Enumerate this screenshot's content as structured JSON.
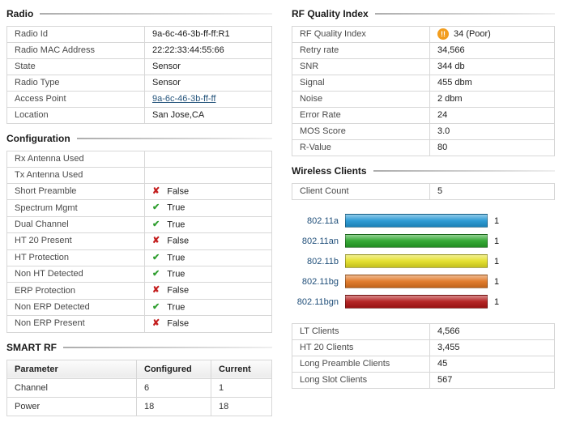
{
  "colors": {
    "link": "#27567d",
    "check": "#2f9e2f",
    "cross": "#c42020",
    "warning": "#f29d1e"
  },
  "radio": {
    "title": "Radio",
    "rows": [
      {
        "label": "Radio Id",
        "value": "9a-6c-46-3b-ff-ff:R1"
      },
      {
        "label": "Radio MAC Address",
        "value": "22:22:33:44:55:66"
      },
      {
        "label": "State",
        "value": "Sensor"
      },
      {
        "label": "Radio Type",
        "value": "Sensor"
      },
      {
        "label": "Access Point",
        "value": "9a-6c-46-3b-ff-ff"
      },
      {
        "label": "Location",
        "value": "San Jose,CA"
      }
    ]
  },
  "configuration": {
    "title": "Configuration",
    "rows": [
      {
        "label": "Rx Antenna Used",
        "value": ""
      },
      {
        "label": "Tx Antenna Used",
        "value": ""
      },
      {
        "label": "Short Preamble",
        "value": "False",
        "icon": "cross"
      },
      {
        "label": "Spectrum Mgmt",
        "value": "True",
        "icon": "check"
      },
      {
        "label": "Dual Channel",
        "value": "True",
        "icon": "check"
      },
      {
        "label": "HT 20 Present",
        "value": "False",
        "icon": "cross"
      },
      {
        "label": "HT Protection",
        "value": "True",
        "icon": "check"
      },
      {
        "label": "Non HT Detected",
        "value": "True",
        "icon": "check"
      },
      {
        "label": "ERP Protection",
        "value": "False",
        "icon": "cross"
      },
      {
        "label": "Non ERP Detected",
        "value": "True",
        "icon": "check"
      },
      {
        "label": "Non ERP Present",
        "value": "False",
        "icon": "cross"
      }
    ]
  },
  "smart_rf": {
    "title": "SMART RF",
    "headers": [
      "Parameter",
      "Configured",
      "Current"
    ],
    "rows": [
      {
        "parameter": "Channel",
        "configured": "6",
        "current": "1"
      },
      {
        "parameter": "Power",
        "configured": "18",
        "current": "18"
      }
    ]
  },
  "rf_quality": {
    "title": "RF Quality Index",
    "rows": [
      {
        "label": "RF Quality Index",
        "value": "34 (Poor)",
        "icon": "warning"
      },
      {
        "label": "Retry rate",
        "value": "34,566"
      },
      {
        "label": "SNR",
        "value": "344 db"
      },
      {
        "label": "Signal",
        "value": "455 dbm"
      },
      {
        "label": "Noise",
        "value": "2 dbm"
      },
      {
        "label": "Error Rate",
        "value": "24"
      },
      {
        "label": "MOS Score",
        "value": "3.0"
      },
      {
        "label": "R-Value",
        "value": "80"
      }
    ]
  },
  "wireless_clients": {
    "title": "Wireless Clients",
    "client_count_label": "Client Count",
    "client_count": "5",
    "stats": [
      {
        "label": "LT Clients",
        "value": "4,566"
      },
      {
        "label": "HT 20 Clients",
        "value": "3,455"
      },
      {
        "label": "Long Preamble Clients",
        "value": "45"
      },
      {
        "label": "Long Slot Clients",
        "value": "567"
      }
    ]
  },
  "chart_data": {
    "type": "bar",
    "orientation": "horizontal",
    "categories": [
      "802.11a",
      "802.11an",
      "802.11b",
      "802.11bg",
      "802.11bgn"
    ],
    "values": [
      1,
      1,
      1,
      1,
      1
    ],
    "colors": [
      "#2196d3",
      "#28a428",
      "#e3df22",
      "#e07420",
      "#b01616"
    ],
    "xlim": [
      0,
      1
    ],
    "value_labels": true
  }
}
